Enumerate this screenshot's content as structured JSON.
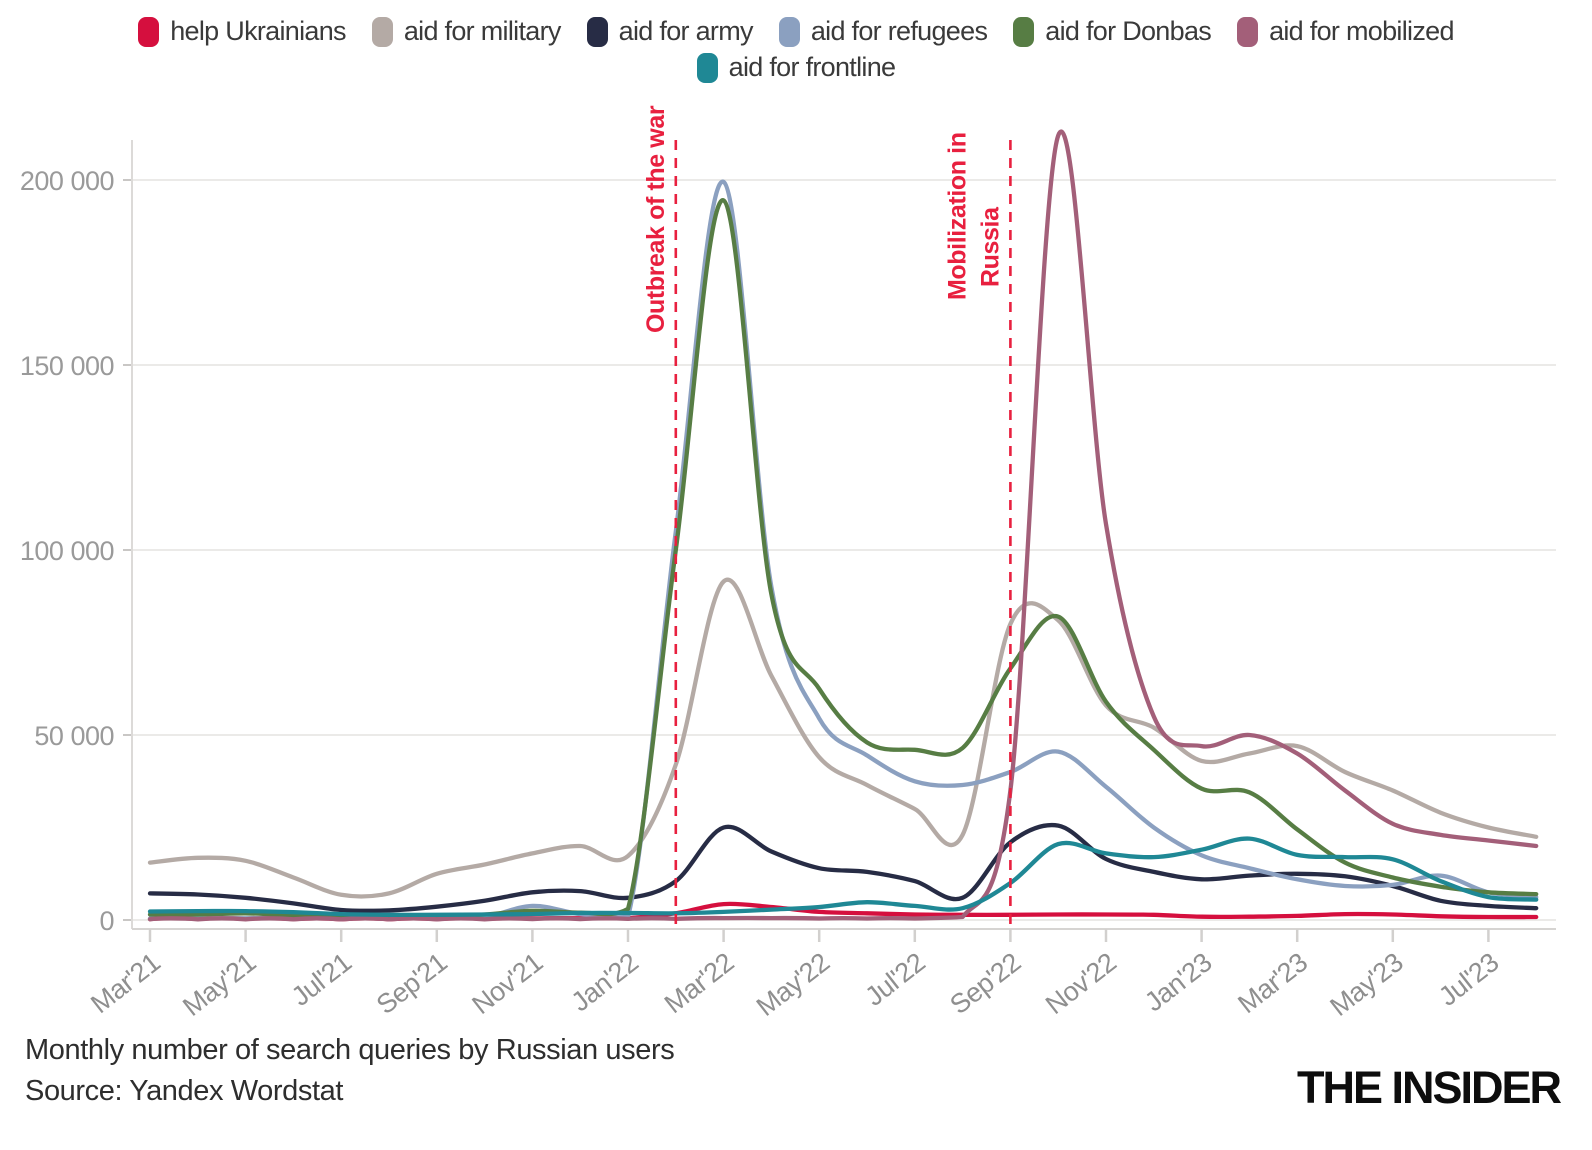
{
  "footer": {
    "title": "Monthly number of search queries by Russian users",
    "source": "Source: Yandex Wordstat",
    "logo": "THE INSIDER"
  },
  "chart_data": {
    "type": "line",
    "title": "Monthly number of search queries by Russian users",
    "source": "Yandex Wordstat",
    "legend_position": "top",
    "grid": true,
    "x": [
      "Mar'21",
      "Apr'21",
      "May'21",
      "Jun'21",
      "Jul'21",
      "Aug'21",
      "Sep'21",
      "Oct'21",
      "Nov'21",
      "Dec'21",
      "Jan'22",
      "Feb'22",
      "Mar'22",
      "Apr'22",
      "May'22",
      "Jun'22",
      "Jul'22",
      "Aug'22",
      "Sep'22",
      "Oct'22",
      "Nov'22",
      "Dec'22",
      "Jan'23",
      "Feb'23",
      "Mar'23",
      "Apr'23",
      "May'23",
      "Jun'23",
      "Jul'23",
      "Aug'23"
    ],
    "x_axis": {
      "tick_every": 2
    },
    "y_axis": {
      "ylim": [
        0,
        215000
      ],
      "ticks": [
        {
          "value": 0,
          "label": "0"
        },
        {
          "value": 50000,
          "label": "50 000"
        },
        {
          "value": 100000,
          "label": "100 000"
        },
        {
          "value": 150000,
          "label": "150 000"
        },
        {
          "value": 200000,
          "label": "200 000"
        }
      ]
    },
    "series": [
      {
        "name": "help Ukrainians",
        "color": "#d50f3e",
        "values": [
          250,
          300,
          300,
          250,
          200,
          200,
          250,
          300,
          400,
          450,
          500,
          1800,
          4300,
          3500,
          2200,
          1800,
          1500,
          1400,
          1400,
          1500,
          1500,
          1400,
          900,
          900,
          1100,
          1600,
          1500,
          1000,
          800,
          800
        ]
      },
      {
        "name": "aid for military",
        "color": "#b4aaa5",
        "values": [
          15500,
          16800,
          16000,
          11500,
          6800,
          7200,
          12500,
          15000,
          18000,
          20000,
          17300,
          42000,
          91500,
          66000,
          44000,
          36500,
          30000,
          23000,
          80000,
          81000,
          58000,
          52000,
          43000,
          45000,
          47000,
          40000,
          35000,
          29000,
          25000,
          22500
        ]
      },
      {
        "name": "aid for army",
        "color": "#272c45",
        "values": [
          7200,
          6900,
          6000,
          4500,
          2700,
          2600,
          3600,
          5200,
          7500,
          7800,
          6000,
          10500,
          25000,
          18500,
          14000,
          13000,
          10500,
          6000,
          21000,
          25500,
          16500,
          13000,
          11000,
          12000,
          12500,
          11800,
          9200,
          5200,
          3800,
          3200
        ]
      },
      {
        "name": "aid for refugees",
        "color": "#8ba0c0",
        "values": [
          400,
          400,
          450,
          400,
          350,
          350,
          400,
          800,
          3800,
          1600,
          800,
          105000,
          199500,
          90000,
          54500,
          44500,
          37500,
          36500,
          40000,
          45500,
          36000,
          25000,
          17500,
          14000,
          11000,
          9200,
          9500,
          12000,
          7500,
          6200
        ]
      },
      {
        "name": "aid for Donbas",
        "color": "#577d44",
        "values": [
          1500,
          1500,
          1800,
          1200,
          900,
          900,
          1200,
          1500,
          2500,
          2000,
          3000,
          100000,
          194500,
          88000,
          62500,
          48000,
          46000,
          46500,
          68000,
          82000,
          59000,
          46000,
          35500,
          34500,
          24500,
          15500,
          11500,
          9000,
          7500,
          7000
        ]
      },
      {
        "name": "aid for mobilized",
        "color": "#a35f79",
        "values": [
          200,
          200,
          200,
          200,
          200,
          200,
          200,
          200,
          250,
          250,
          300,
          300,
          500,
          500,
          400,
          400,
          400,
          800,
          35000,
          212000,
          107000,
          55000,
          47000,
          50000,
          45000,
          35000,
          26000,
          23000,
          21500,
          20000
        ]
      },
      {
        "name": "aid for frontline",
        "color": "#1f8895",
        "values": [
          2300,
          2400,
          2400,
          2100,
          1600,
          1400,
          1400,
          1500,
          1600,
          1900,
          1900,
          1800,
          2200,
          2800,
          3500,
          4800,
          3800,
          3200,
          10000,
          20500,
          18000,
          17000,
          19000,
          22000,
          17600,
          17000,
          16400,
          10500,
          6200,
          5500
        ]
      }
    ],
    "legend_rows": [
      [
        0,
        1,
        2,
        3,
        4,
        5
      ],
      [
        6
      ]
    ],
    "annotations": [
      {
        "lines": [
          "Outbreak of the war"
        ],
        "month_index": 11,
        "line_bottoms": [
          333
        ]
      },
      {
        "lines": [
          "Mobilization in",
          "Russia"
        ],
        "month_index": 18,
        "line_bottoms": [
          300,
          287
        ]
      }
    ]
  }
}
